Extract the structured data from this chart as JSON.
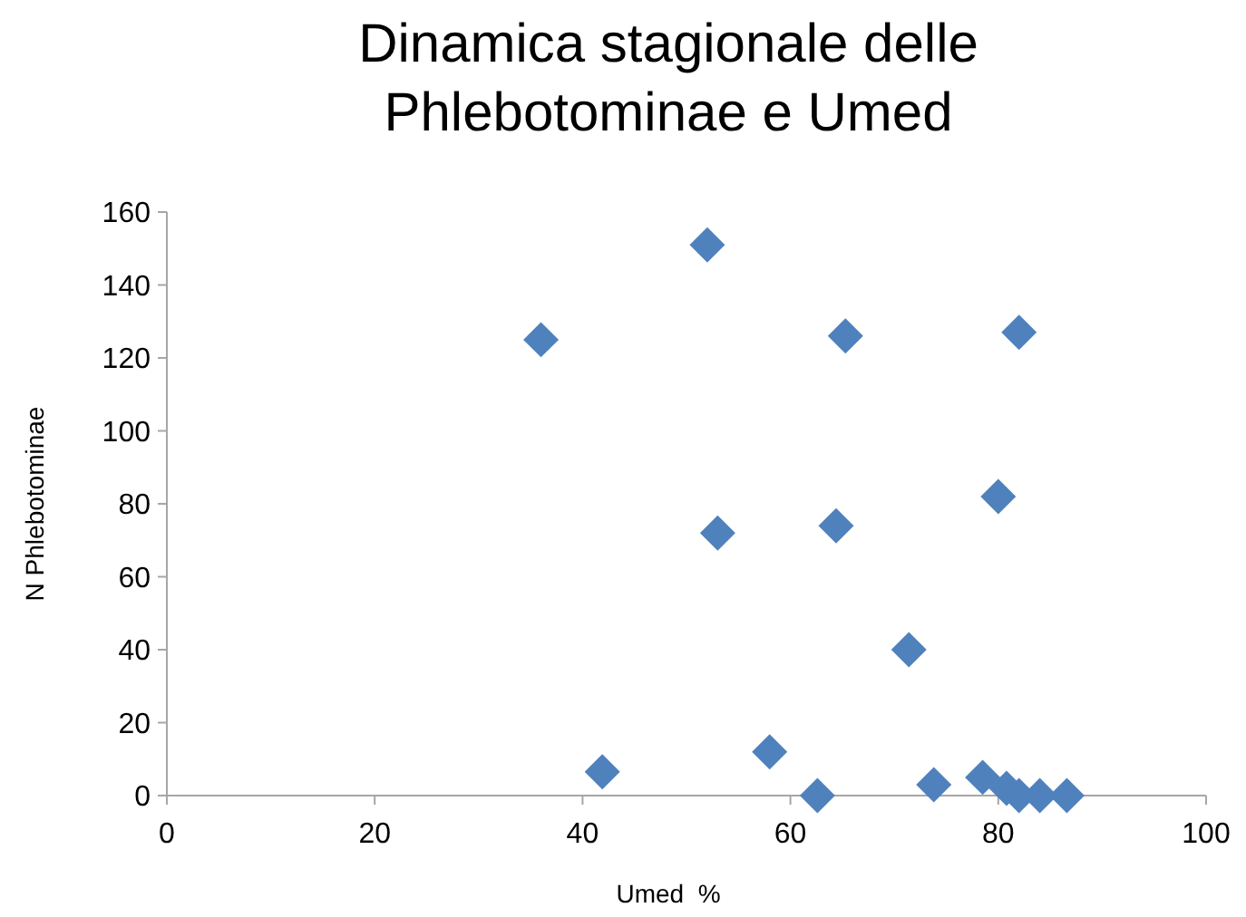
{
  "chart_data": {
    "type": "scatter",
    "title": "Dinamica stagionale delle Phlebotominae e Umed",
    "xlabel": "Umed  %",
    "ylabel": "N Phlebotominae",
    "x": [
      36,
      52,
      65.3,
      82,
      80,
      53,
      64.4,
      71.4,
      41.9,
      58,
      62.6,
      73.8,
      78.5,
      80.8,
      82,
      84,
      86.6
    ],
    "series": [
      {
        "color": "#4f81bd",
        "values": [
          125,
          151,
          126,
          127,
          82,
          72,
          74,
          40,
          6.5,
          12,
          0,
          3,
          5,
          2,
          0,
          0,
          0
        ]
      }
    ],
    "xlim": [
      0,
      100
    ],
    "xticks": [
      0,
      20,
      40,
      60,
      80,
      100
    ],
    "ylim": [
      0,
      160
    ],
    "yticks": [
      0,
      20,
      40,
      60,
      80,
      100,
      120,
      140,
      160
    ],
    "marker": "diamond",
    "grid": false
  }
}
